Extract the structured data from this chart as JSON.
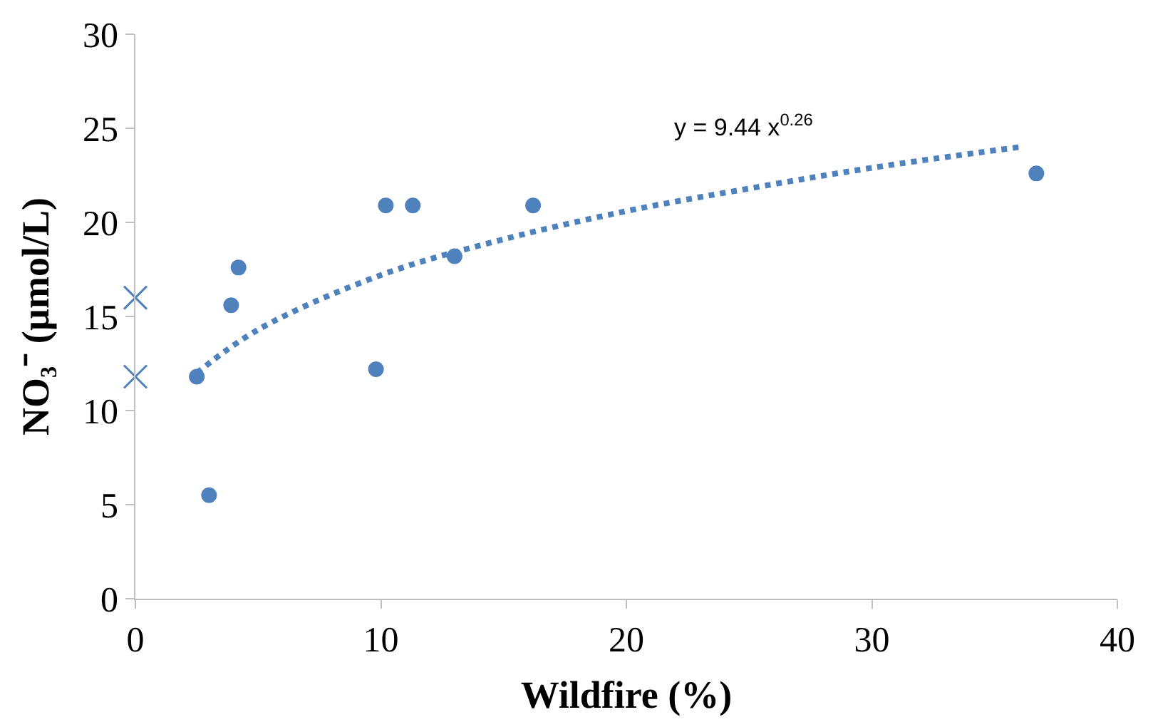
{
  "chart_data": {
    "type": "scatter",
    "xlabel": "Wildfire (%)",
    "ylabel": "NO₃⁻ (µmol/L)",
    "xlim": [
      0,
      40
    ],
    "xticks": [
      0,
      10,
      20,
      30,
      40
    ],
    "ylim": [
      0,
      30
    ],
    "yticks": [
      0,
      5,
      10,
      15,
      20,
      25,
      30
    ],
    "annotations": [
      "y = 9.44 x$^{0.26}$"
    ],
    "series": [
      {
        "marker": "circle",
        "color": "#4f81bd",
        "x": [
          2.5,
          3.0,
          3.9,
          4.2,
          9.8,
          10.2,
          11.3,
          13.0,
          16.2,
          36.7
        ],
        "values": [
          11.8,
          5.5,
          15.6,
          17.6,
          12.2,
          20.9,
          20.9,
          18.2,
          20.9,
          22.6
        ]
      },
      {
        "marker": "cross",
        "color": "#4f81bd",
        "x": [
          0,
          0
        ],
        "values": [
          16.0,
          11.8
        ]
      },
      {
        "type": "line",
        "marker": "none",
        "line_style": "dotted",
        "color": "#4f81bd",
        "x": [
          2.5,
          5,
          10,
          15,
          20,
          25,
          30,
          36
        ],
        "values": [
          12.0,
          14.3,
          17.2,
          19.1,
          20.6,
          21.8,
          22.9,
          24.0
        ]
      }
    ]
  }
}
